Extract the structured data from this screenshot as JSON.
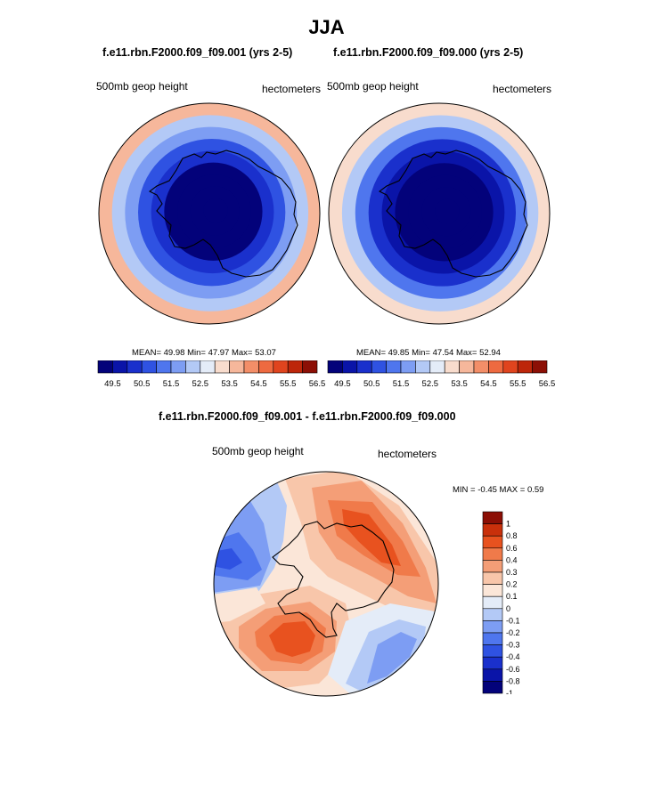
{
  "page_title": "JJA",
  "colors": {
    "abs_levels": [
      "#03027a",
      "#0a14a8",
      "#1a30cc",
      "#2f52e2",
      "#4f76ee",
      "#7d9df3",
      "#b3c9f6",
      "#e4ecf8",
      "#f8dccd",
      "#f6b79b",
      "#f38e68",
      "#ee6a40",
      "#e0441e",
      "#bd260a",
      "#8c0f05"
    ],
    "diff_levels": [
      "#03027a",
      "#0a14a8",
      "#1a30cc",
      "#2f52e2",
      "#4f76ee",
      "#7d9df3",
      "#b3c9f6",
      "#e4ecf8",
      "#fbe6d8",
      "#f8c6aa",
      "#f49e77",
      "#f07a4a",
      "#e8521f",
      "#c9300b",
      "#8c0f05"
    ],
    "coast": "#000000"
  },
  "chart_data": [
    {
      "type": "heatmap",
      "subtitle": "f.e11.rbn.F2000.f09_f09.001 (yrs 2-5)",
      "variable_label": "500mb geop height",
      "units_label": "hectometers",
      "stats": {
        "mean_label": "MEAN=",
        "mean": "49.98",
        "min_label": "Min=",
        "min": "47.97",
        "max_label": "Max=",
        "max": "53.07"
      },
      "colorbar_ticks": [
        "49.5",
        "50.5",
        "51.5",
        "52.5",
        "53.5",
        "54.5",
        "55.5",
        "56.5"
      ],
      "levels": [
        49.0,
        49.5,
        50.0,
        50.5,
        51.0,
        51.5,
        52.0,
        52.5,
        53.0,
        53.5,
        54.0,
        54.5,
        55.0,
        55.5,
        56.0,
        56.5
      ],
      "field_range": [
        47.97,
        53.07
      ],
      "projection": "south polar stereographic"
    },
    {
      "type": "heatmap",
      "subtitle": "f.e11.rbn.F2000.f09_f09.000 (yrs 2-5)",
      "variable_label": "500mb geop height",
      "units_label": "hectometers",
      "stats": {
        "mean_label": "MEAN=",
        "mean": "49.85",
        "min_label": "Min=",
        "min": "47.54",
        "max_label": "Max=",
        "max": "52.94"
      },
      "colorbar_ticks": [
        "49.5",
        "50.5",
        "51.5",
        "52.5",
        "53.5",
        "54.5",
        "55.5",
        "56.5"
      ],
      "levels": [
        49.0,
        49.5,
        50.0,
        50.5,
        51.0,
        51.5,
        52.0,
        52.5,
        53.0,
        53.5,
        54.0,
        54.5,
        55.0,
        55.5,
        56.0,
        56.5
      ],
      "field_range": [
        47.54,
        52.94
      ],
      "projection": "south polar stereographic"
    },
    {
      "type": "heatmap",
      "subtitle": "f.e11.rbn.F2000.f09_f09.001 - f.e11.rbn.F2000.f09_f09.000",
      "variable_label": "500mb geop height",
      "units_label": "hectometers",
      "minmax": {
        "min_label": "MIN =",
        "min": "-0.45",
        "max_label": "MAX =",
        "max": "0.59"
      },
      "colorbar_ticks": [
        "1",
        "0.8",
        "0.6",
        "0.4",
        "0.3",
        "0.2",
        "0.1",
        "0",
        "-0.1",
        "-0.2",
        "-0.3",
        "-0.4",
        "-0.6",
        "-0.8",
        "-1"
      ],
      "levels": [
        -1,
        -0.8,
        -0.6,
        -0.4,
        -0.3,
        -0.2,
        -0.1,
        0,
        0.1,
        0.2,
        0.3,
        0.4,
        0.6,
        0.8,
        1
      ],
      "field_range": [
        -0.45,
        0.59
      ],
      "projection": "south polar stereographic"
    }
  ]
}
